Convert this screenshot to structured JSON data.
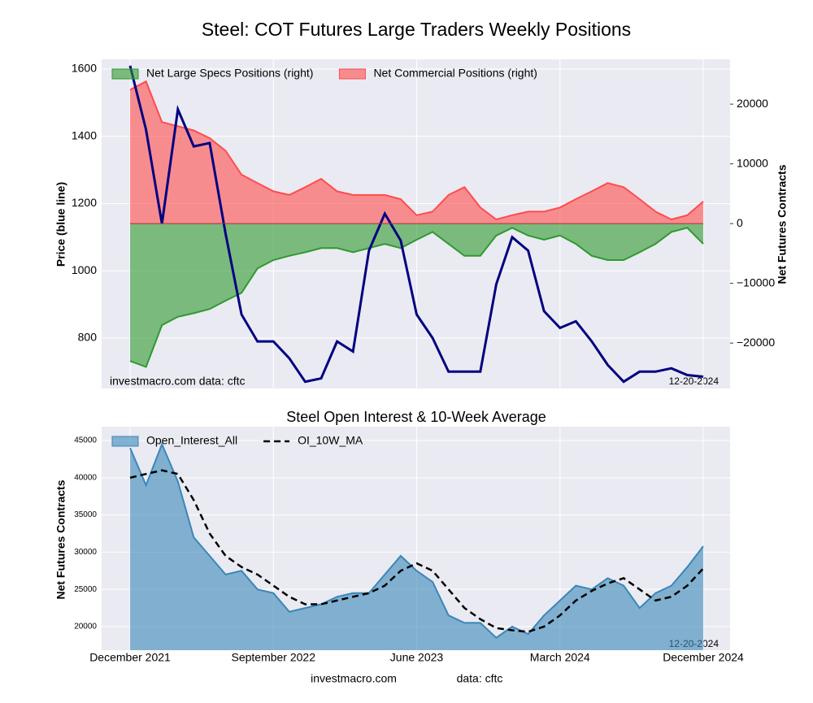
{
  "title": "Steel: COT Futures Large Traders Weekly Positions",
  "footer": [
    "investmacro.com",
    "data: cftc"
  ],
  "chart_data": [
    {
      "type": "combo",
      "ylabel": "Price (blue line)",
      "y2label": "Net Futures Contracts",
      "annotations": [
        "investmacro.com   data: cftc",
        "12-20-2024"
      ],
      "ylim": [
        650,
        1629
      ],
      "yticks": [
        800,
        1000,
        1200,
        1400,
        1600
      ],
      "y2lim": [
        -27600,
        27500
      ],
      "y2ticks": [
        {
          "value": -20000,
          "label": "−20000"
        },
        {
          "value": -10000,
          "label": "−10000"
        },
        0,
        10000,
        20000
      ],
      "grid": true,
      "legend": "upper left",
      "series": [
        {
          "name": "Net Large Specs Positions (right)",
          "color": "#2e9a2e",
          "kind": "area",
          "axis": "y2",
          "values": [
            -23000,
            -24000,
            -17000,
            -15600,
            -15000,
            -14300,
            -12900,
            -11600,
            -7500,
            -6100,
            -5400,
            -4800,
            -4100,
            -4100,
            -4800,
            -4100,
            -3400,
            -4100,
            -2700,
            -1400,
            -3400,
            -5400,
            -5400,
            -2000,
            -700,
            -2000,
            -2700,
            -2000,
            -3400,
            -5400,
            -6100,
            -6100,
            -4800,
            -3400,
            -1400,
            -700,
            -3400
          ]
        },
        {
          "name": "Net Commercial Positions (right)",
          "color": "#ff4c4c",
          "kind": "area",
          "axis": "y2",
          "values": [
            22400,
            23800,
            17000,
            16300,
            15600,
            14300,
            12200,
            8200,
            6800,
            5400,
            4800,
            6100,
            7500,
            5400,
            4800,
            4800,
            4800,
            4100,
            1400,
            2000,
            4800,
            6100,
            2700,
            700,
            1400,
            2000,
            2000,
            2700,
            4100,
            5400,
            6800,
            6100,
            4100,
            2000,
            700,
            1400,
            3700
          ]
        },
        {
          "color": "#000080",
          "kind": "line",
          "axis": "y",
          "values": [
            1610,
            1420,
            1140,
            1480,
            1370,
            1380,
            1110,
            870,
            790,
            790,
            740,
            670,
            680,
            790,
            760,
            1060,
            1170,
            1090,
            870,
            800,
            700,
            700,
            700,
            960,
            1100,
            1060,
            880,
            830,
            850,
            790,
            720,
            670,
            700,
            700,
            710,
            690,
            685
          ]
        }
      ]
    },
    {
      "type": "combo",
      "title": "Steel Open Interest & 10-Week Average",
      "ylabel": "Net Futures Contracts",
      "annotations": [
        "12-20-2024"
      ],
      "categories": [
        "December 2021",
        null,
        null,
        null,
        null,
        null,
        null,
        null,
        null,
        "September 2022",
        null,
        null,
        null,
        null,
        null,
        null,
        null,
        null,
        "June 2023",
        null,
        null,
        null,
        null,
        null,
        null,
        null,
        null,
        "March 2024",
        null,
        null,
        null,
        null,
        null,
        null,
        null,
        null,
        "December 2024"
      ],
      "ylim": [
        16830,
        46860
      ],
      "yticks": [
        20000,
        25000,
        30000,
        35000,
        40000,
        45000
      ],
      "grid": true,
      "legend": "upper left",
      "series": [
        {
          "name": "Open_Interest_All",
          "color": "#3a87b8",
          "kind": "area",
          "values": [
            44000,
            39000,
            44500,
            39500,
            32000,
            29500,
            27000,
            27500,
            25000,
            24500,
            22000,
            22500,
            23000,
            24000,
            24500,
            24500,
            27000,
            29500,
            27500,
            26000,
            21500,
            20500,
            20500,
            18500,
            20000,
            19000,
            21500,
            23500,
            25500,
            25000,
            26500,
            25500,
            22500,
            24500,
            25500,
            28000,
            30800
          ]
        },
        {
          "name": "OI_10W_MA",
          "color": "#000000",
          "kind": "dash",
          "values": [
            40000,
            40500,
            41000,
            40500,
            37000,
            32500,
            29500,
            28000,
            27000,
            25500,
            24000,
            23000,
            23000,
            23500,
            24000,
            24500,
            25500,
            27500,
            28500,
            27500,
            25000,
            22500,
            21000,
            19800,
            19500,
            19300,
            20000,
            21500,
            23500,
            24800,
            25800,
            26500,
            25000,
            23500,
            24000,
            25500,
            27800
          ]
        }
      ]
    }
  ]
}
